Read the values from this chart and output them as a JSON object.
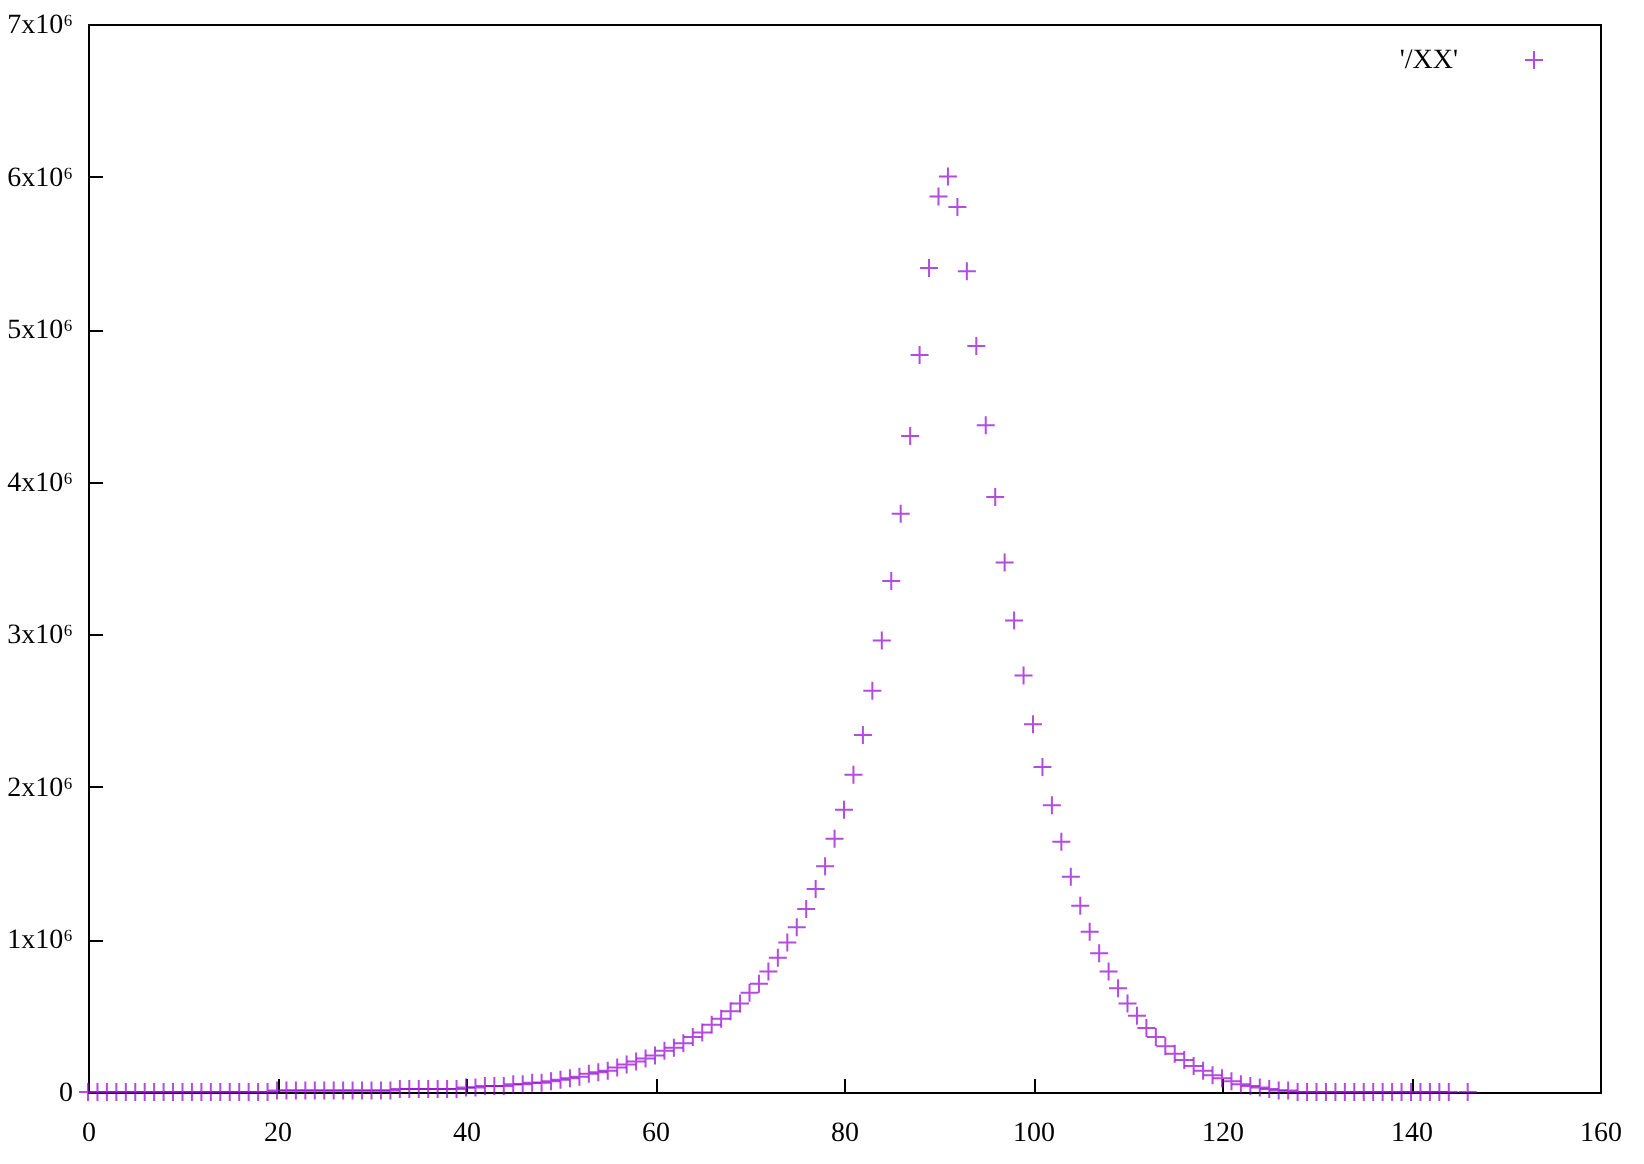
{
  "chart_data": {
    "type": "scatter",
    "marker": "cross",
    "legend": "top right",
    "xlim": [
      0,
      160
    ],
    "xticks": [
      0,
      20,
      40,
      60,
      80,
      100,
      120,
      140,
      160
    ],
    "ylim": [
      0,
      7000000
    ],
    "yticks": [
      0,
      {
        "value": 1000000,
        "label": "1x10⁶"
      },
      {
        "value": 2000000,
        "label": "2x10⁶"
      },
      {
        "value": 3000000,
        "label": "3x10⁶"
      },
      {
        "value": 4000000,
        "label": "4x10⁶"
      },
      {
        "value": 5000000,
        "label": "5x10⁶"
      },
      {
        "value": 6000000,
        "label": "6x10⁶"
      },
      {
        "value": 7000000,
        "label": "7x10⁶"
      }
    ],
    "x": [
      0,
      1,
      2,
      3,
      4,
      5,
      6,
      7,
      8,
      9,
      10,
      11,
      12,
      13,
      14,
      15,
      16,
      17,
      18,
      19,
      20,
      21,
      22,
      23,
      24,
      25,
      26,
      27,
      28,
      29,
      30,
      31,
      32,
      33,
      34,
      35,
      36,
      37,
      38,
      39,
      40,
      41,
      42,
      43,
      44,
      45,
      46,
      47,
      48,
      49,
      50,
      51,
      52,
      53,
      54,
      55,
      56,
      57,
      58,
      59,
      60,
      61,
      62,
      63,
      64,
      65,
      66,
      67,
      68,
      69,
      70,
      71,
      72,
      73,
      74,
      75,
      76,
      77,
      78,
      79,
      80,
      81,
      82,
      83,
      84,
      85,
      86,
      87,
      88,
      89,
      90,
      91,
      92,
      93,
      94,
      95,
      96,
      97,
      98,
      99,
      100,
      101,
      102,
      103,
      104,
      105,
      106,
      107,
      108,
      109,
      110,
      111,
      112,
      113,
      114,
      115,
      116,
      117,
      118,
      119,
      120,
      121,
      122,
      123,
      124,
      125,
      126,
      127,
      128,
      129,
      130,
      131,
      132,
      133,
      134,
      135,
      136,
      137,
      138,
      139,
      140,
      141,
      142,
      143,
      144,
      146
    ],
    "series": [
      {
        "name": "'/XX'",
        "color": "#9400d3",
        "values": [
          0,
          0,
          0,
          0,
          0,
          0,
          0,
          0,
          0,
          0,
          0,
          0,
          0,
          0,
          0,
          0,
          0,
          0,
          0,
          0,
          10000,
          10000,
          10000,
          10000,
          10000,
          10000,
          10000,
          10000,
          10000,
          10000,
          10000,
          10000,
          10000,
          20000,
          20000,
          20000,
          20000,
          20000,
          20000,
          20000,
          30000,
          30000,
          40000,
          40000,
          40000,
          50000,
          50000,
          60000,
          60000,
          70000,
          80000,
          90000,
          100000,
          120000,
          130000,
          140000,
          160000,
          180000,
          200000,
          220000,
          240000,
          270000,
          290000,
          320000,
          360000,
          390000,
          440000,
          480000,
          530000,
          580000,
          650000,
          710000,
          790000,
          880000,
          980000,
          1080000,
          1200000,
          1330000,
          1480000,
          1660000,
          1850000,
          2080000,
          2340000,
          2630000,
          2960000,
          3350000,
          3790000,
          4300000,
          4830000,
          5400000,
          5870000,
          6000000,
          5800000,
          5380000,
          4890000,
          4370000,
          3900000,
          3470000,
          3090000,
          2730000,
          2410000,
          2130000,
          1880000,
          1640000,
          1410000,
          1220000,
          1050000,
          910000,
          790000,
          680000,
          580000,
          500000,
          420000,
          360000,
          300000,
          250000,
          210000,
          170000,
          140000,
          110000,
          90000,
          70000,
          50000,
          40000,
          30000,
          20000,
          10000,
          10000,
          0,
          0,
          0,
          0,
          0,
          0,
          0,
          0,
          0,
          0,
          0,
          0,
          0,
          0,
          0,
          0,
          0,
          0
        ]
      }
    ]
  }
}
